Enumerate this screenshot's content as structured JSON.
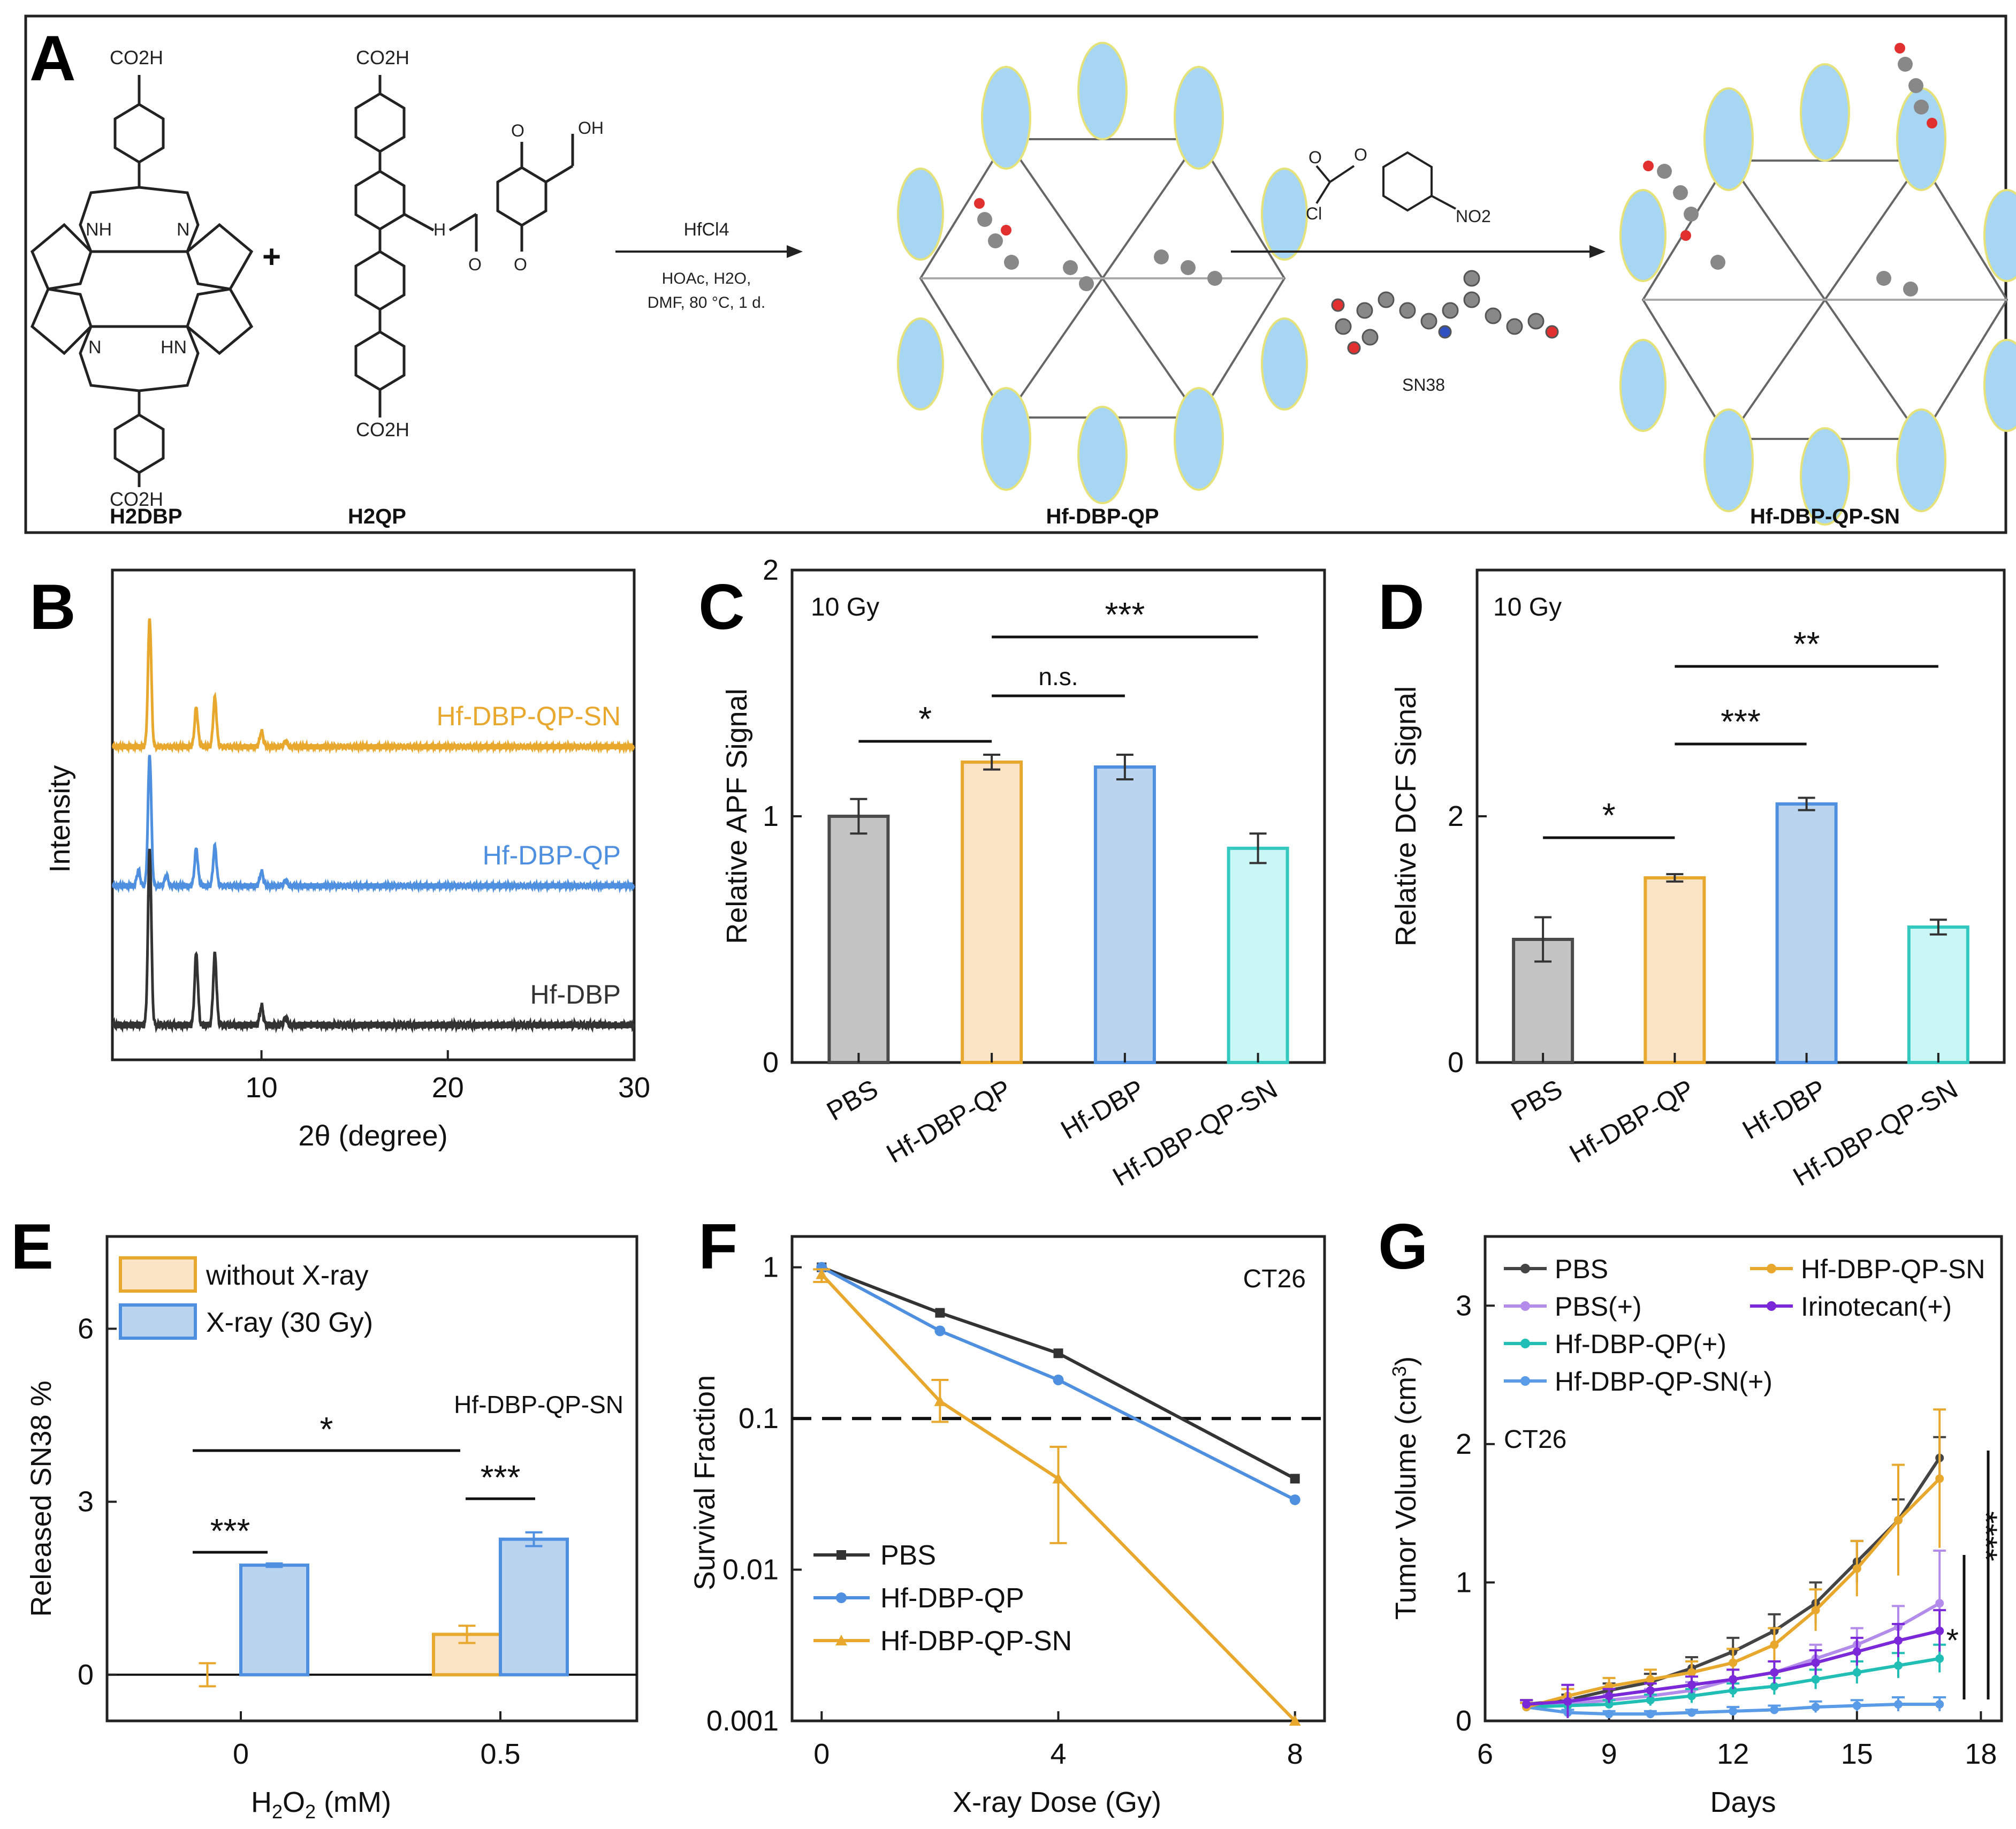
{
  "panel_letters": [
    "A",
    "B",
    "C",
    "D",
    "E",
    "F",
    "G"
  ],
  "scheme": {
    "compounds": [
      "H2DBP",
      "H2QP",
      "Hf-DBP-QP",
      "Hf-DBP-QP-SN"
    ],
    "plus": "+",
    "reagent1": {
      "top": "HfCl4",
      "line2": "HOAc, H2O,",
      "line3": "DMF, 80 °C, 1 d."
    },
    "reagent2": {
      "label": "SN38",
      "cl": "Cl",
      "no2": "NO2"
    },
    "groups": {
      "co2h": "CO2H",
      "nh": "NH",
      "n": "N",
      "hn": "HN",
      "o": "O",
      "oh": "OH",
      "h": "H"
    }
  },
  "chart_data": [
    {
      "panel": "B",
      "type": "line",
      "xlabel": "2θ (degree)",
      "ylabel": "Intensity",
      "xlim": [
        2,
        30
      ],
      "xticks": [
        10,
        20,
        30
      ],
      "series": [
        {
          "name": "Hf-DBP-QP-SN",
          "color": "#E8A82E",
          "peaks": [
            [
              4.0,
              1.0
            ],
            [
              6.5,
              0.3
            ],
            [
              7.5,
              0.38
            ],
            [
              10.0,
              0.12
            ],
            [
              11.3,
              0.04
            ]
          ]
        },
        {
          "name": "Hf-DBP-QP",
          "color": "#4E8FE0",
          "peaks": [
            [
              3.4,
              0.12
            ],
            [
              4.0,
              1.0
            ],
            [
              4.9,
              0.08
            ],
            [
              6.5,
              0.28
            ],
            [
              7.5,
              0.3
            ],
            [
              10.0,
              0.11
            ],
            [
              11.3,
              0.04
            ]
          ]
        },
        {
          "name": "Hf-DBP",
          "color": "#333333",
          "peaks": [
            [
              4.0,
              1.0
            ],
            [
              6.5,
              0.4
            ],
            [
              7.5,
              0.4
            ],
            [
              10.0,
              0.11
            ],
            [
              11.3,
              0.04
            ]
          ]
        }
      ]
    },
    {
      "panel": "C",
      "type": "bar",
      "annotation": "10 Gy",
      "categories": [
        "PBS",
        "Hf-DBP-QP",
        "Hf-DBP",
        "Hf-DBP-QP-SN"
      ],
      "values": [
        1.0,
        1.22,
        1.2,
        0.87
      ],
      "errors": [
        0.07,
        0.03,
        0.05,
        0.06
      ],
      "colors": [
        "#4a4a4a",
        "#E8A82E",
        "#4E8FE0",
        "#33C9C0"
      ],
      "fills": [
        "#C4C4C4",
        "#FBE4C6",
        "#BAD4EF",
        "#C8F7F5"
      ],
      "ylabel": "Relative APF Signal",
      "ylim": [
        0,
        2
      ],
      "yticks": [
        0,
        1,
        2
      ],
      "significance": [
        {
          "from": 0,
          "to": 1,
          "label": "*"
        },
        {
          "from": 1,
          "to": 2,
          "label": "n.s."
        },
        {
          "from": 1,
          "to": 3,
          "label": "***"
        }
      ]
    },
    {
      "panel": "D",
      "type": "bar",
      "annotation": "10 Gy",
      "categories": [
        "PBS",
        "Hf-DBP-QP",
        "Hf-DBP",
        "Hf-DBP-QP-SN"
      ],
      "values": [
        1.0,
        1.5,
        2.1,
        1.1
      ],
      "errors": [
        0.18,
        0.03,
        0.05,
        0.06
      ],
      "colors": [
        "#4a4a4a",
        "#E8A82E",
        "#4E8FE0",
        "#33C9C0"
      ],
      "fills": [
        "#C4C4C4",
        "#FBE4C6",
        "#BAD4EF",
        "#C8F7F5"
      ],
      "ylabel": "Relative DCF Signal",
      "ylim": [
        0,
        4
      ],
      "yticks": [
        0,
        2
      ],
      "significance": [
        {
          "from": 0,
          "to": 1,
          "label": "*"
        },
        {
          "from": 1,
          "to": 2,
          "label": "***"
        },
        {
          "from": 1,
          "to": 3,
          "label": "**"
        }
      ]
    },
    {
      "panel": "E",
      "type": "bar",
      "annotation": "Hf-DBP-QP-SN",
      "categories": [
        "0",
        "0.5"
      ],
      "series": [
        {
          "name": "without X-ray",
          "values": [
            0.0,
            0.7
          ],
          "errors": [
            0.2,
            0.15
          ],
          "color": "#E8A82E",
          "fill": "#FBE4C6"
        },
        {
          "name": "X-ray (30 Gy)",
          "values": [
            1.9,
            2.35
          ],
          "errors": [
            0.03,
            0.12
          ],
          "color": "#4E8FE0",
          "fill": "#BAD4EF"
        }
      ],
      "xlabel": "H2O2 (mM)",
      "ylabel": "Released SN38 %",
      "ylim": [
        -0.8,
        7.6
      ],
      "yticks": [
        0,
        3,
        6
      ],
      "significance": [
        "***",
        "***",
        "*"
      ]
    },
    {
      "panel": "F",
      "type": "line",
      "annotation": "CT26",
      "xlabel": "X-ray Dose (Gy)",
      "ylabel": "Survival Fraction",
      "xlim": [
        -0.5,
        8.5
      ],
      "xticks": [
        0,
        4,
        8
      ],
      "ylim": [
        0.001,
        1.6
      ],
      "yscale": "log",
      "yticks": [
        1,
        0.1,
        0.01,
        0.001
      ],
      "ytick_labels": [
        "1",
        "0.1",
        "0.01",
        "0.001"
      ],
      "reference_line": 0.1,
      "series": [
        {
          "name": "PBS",
          "color": "#333333",
          "marker": "square",
          "x": [
            0,
            2,
            4,
            8
          ],
          "y": [
            1,
            0.5,
            0.27,
            0.04
          ]
        },
        {
          "name": "Hf-DBP-QP",
          "color": "#4E8FE0",
          "marker": "circle",
          "x": [
            0,
            2,
            4,
            8
          ],
          "y": [
            1,
            0.38,
            0.18,
            0.029
          ]
        },
        {
          "name": "Hf-DBP-QP-SN",
          "color": "#E8A82E",
          "marker": "triangle",
          "x": [
            0,
            2,
            4,
            8
          ],
          "y": [
            0.9,
            0.13,
            0.04,
            0.001
          ],
          "err_lo": [
            0.8,
            0.095,
            0.015,
            0.001
          ],
          "err_hi": [
            0.97,
            0.18,
            0.065,
            0.001
          ]
        }
      ]
    },
    {
      "panel": "G",
      "type": "line",
      "annotation": "CT26",
      "xlabel": "Days",
      "ylabel": "Tumor Volume (cm3)",
      "xlim": [
        6,
        18.5
      ],
      "xticks": [
        6,
        9,
        12,
        15,
        18
      ],
      "ylim": [
        0,
        3.5
      ],
      "yticks": [
        0,
        1,
        2,
        3
      ],
      "x": [
        7,
        8,
        9,
        10,
        11,
        12,
        13,
        14,
        15,
        16,
        17
      ],
      "series": [
        {
          "name": "PBS",
          "color": "#444444",
          "y": [
            0.12,
            0.15,
            0.22,
            0.28,
            0.38,
            0.5,
            0.65,
            0.85,
            1.15,
            1.45,
            1.9
          ],
          "err": [
            0.03,
            0.04,
            0.05,
            0.06,
            0.08,
            0.1,
            0.12,
            0.15,
            0.15,
            0.15,
            0.15
          ]
        },
        {
          "name": "PBS(+)",
          "color": "#B38CEB",
          "y": [
            0.1,
            0.12,
            0.15,
            0.18,
            0.22,
            0.3,
            0.35,
            0.45,
            0.55,
            0.68,
            0.85
          ],
          "err": [
            0.03,
            0.04,
            0.04,
            0.05,
            0.06,
            0.07,
            0.08,
            0.1,
            0.12,
            0.15,
            0.38
          ]
        },
        {
          "name": "Hf-DBP-QP(+)",
          "color": "#20BEB4",
          "y": [
            0.1,
            0.11,
            0.12,
            0.15,
            0.18,
            0.22,
            0.25,
            0.3,
            0.35,
            0.4,
            0.45
          ],
          "err": [
            0.03,
            0.03,
            0.03,
            0.04,
            0.05,
            0.05,
            0.06,
            0.07,
            0.08,
            0.09,
            0.1
          ]
        },
        {
          "name": "Hf-DBP-QP-SN(+)",
          "color": "#5A9BE8",
          "y": [
            0.1,
            0.06,
            0.05,
            0.05,
            0.06,
            0.07,
            0.08,
            0.1,
            0.11,
            0.12,
            0.12
          ],
          "err": [
            0.03,
            0.02,
            0.02,
            0.02,
            0.02,
            0.03,
            0.03,
            0.04,
            0.04,
            0.05,
            0.05
          ]
        },
        {
          "name": "Hf-DBP-QP-SN",
          "color": "#E8A82E",
          "y": [
            0.1,
            0.18,
            0.25,
            0.3,
            0.35,
            0.42,
            0.55,
            0.8,
            1.1,
            1.45,
            1.75
          ],
          "err": [
            0.03,
            0.05,
            0.06,
            0.07,
            0.08,
            0.1,
            0.12,
            0.15,
            0.2,
            0.4,
            0.5
          ]
        },
        {
          "name": "Irinotecan(+)",
          "color": "#7A28D8",
          "y": [
            0.12,
            0.14,
            0.18,
            0.22,
            0.26,
            0.3,
            0.35,
            0.42,
            0.5,
            0.58,
            0.65
          ],
          "err": [
            0.03,
            0.12,
            0.05,
            0.05,
            0.06,
            0.07,
            0.08,
            0.09,
            0.1,
            0.12,
            0.15
          ]
        }
      ],
      "significance": [
        "*",
        "****"
      ]
    }
  ]
}
